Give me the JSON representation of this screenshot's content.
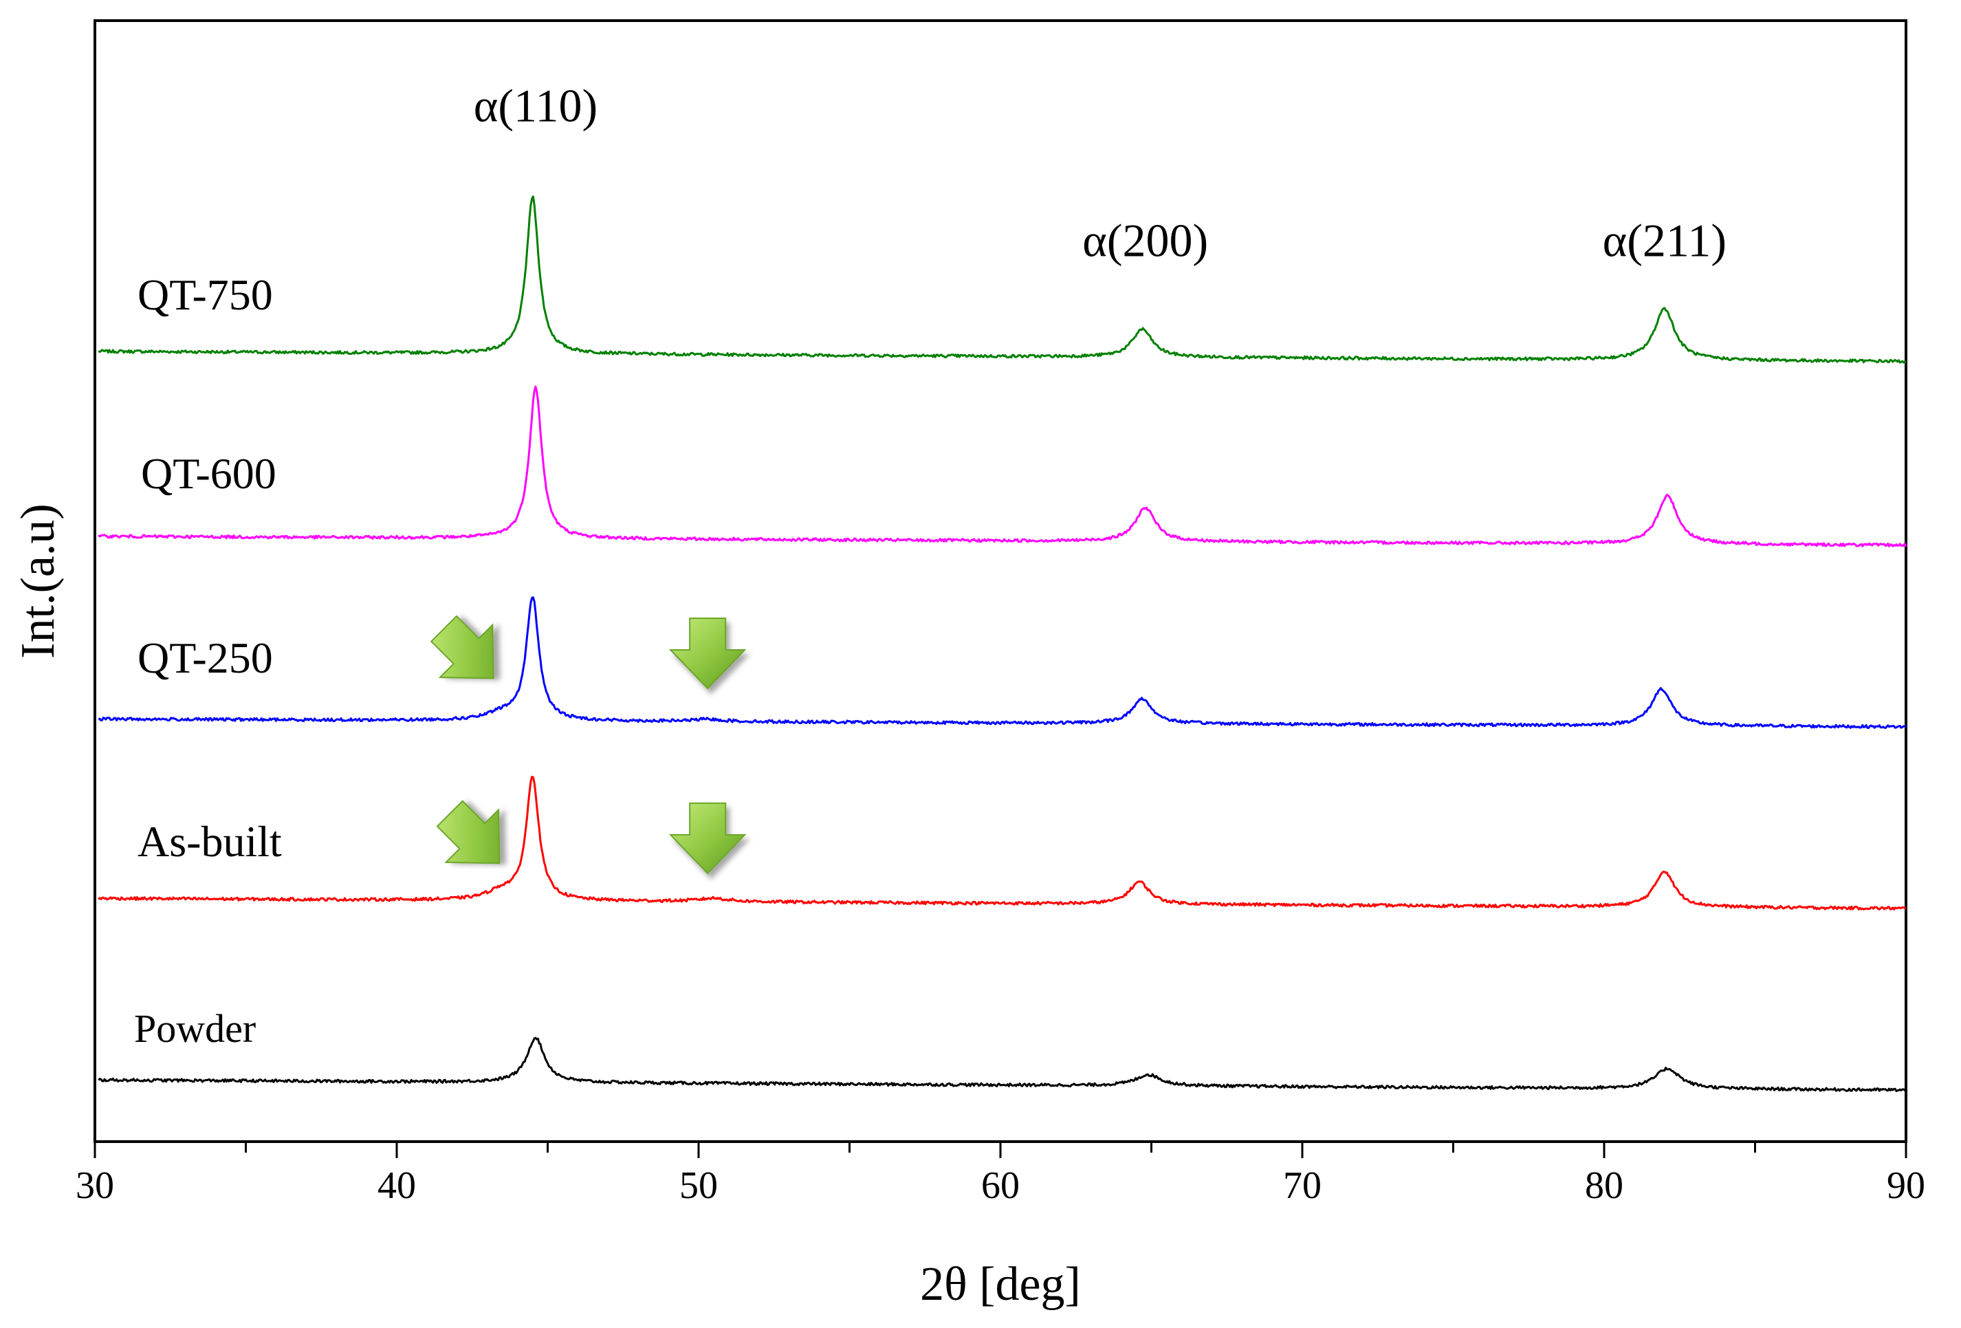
{
  "chart_data": {
    "type": "line",
    "title": "",
    "xlabel": "2θ [deg]",
    "ylabel": "Int.(a.u)",
    "xlim": [
      30,
      90
    ],
    "ylim": [
      0,
      100
    ],
    "x_ticks": [
      30,
      40,
      50,
      60,
      70,
      80,
      90
    ],
    "x_minor_step": 5,
    "y_ticks_shown": false,
    "grid": false,
    "legend": "none (series labelled inline at left)",
    "peak_positions": [
      44.6,
      64.8,
      82.0
    ],
    "series": [
      {
        "name": "QT-750",
        "color": "#008000",
        "baseline_start": 70.5,
        "baseline_end": 69.6,
        "peaks": [
          {
            "x": 44.5,
            "height": 14.0,
            "width": 0.25
          },
          {
            "x": 64.7,
            "height": 2.5,
            "width": 0.4
          },
          {
            "x": 82.0,
            "height": 4.6,
            "width": 0.4
          }
        ]
      },
      {
        "name": "QT-600",
        "color": "#ff00ff",
        "baseline_start": 54.0,
        "baseline_end": 53.2,
        "peaks": [
          {
            "x": 44.6,
            "height": 13.5,
            "width": 0.25
          },
          {
            "x": 64.8,
            "height": 3.0,
            "width": 0.4
          },
          {
            "x": 82.1,
            "height": 4.3,
            "width": 0.4
          }
        ]
      },
      {
        "name": "QT-250",
        "color": "#0000ff",
        "baseline_start": 37.7,
        "baseline_end": 37.0,
        "peaks": [
          {
            "x": 44.5,
            "height": 11.0,
            "width": 0.25
          },
          {
            "x": 64.7,
            "height": 2.2,
            "width": 0.4
          },
          {
            "x": 81.9,
            "height": 3.3,
            "width": 0.4
          },
          {
            "x": 43.5,
            "height": 0.6,
            "width": 0.6
          },
          {
            "x": 50.3,
            "height": 0.2,
            "width": 0.6
          }
        ]
      },
      {
        "name": "As-built",
        "color": "#ff0000",
        "baseline_start": 21.7,
        "baseline_end": 20.8,
        "peaks": [
          {
            "x": 44.5,
            "height": 11.0,
            "width": 0.25
          },
          {
            "x": 64.6,
            "height": 2.0,
            "width": 0.4
          },
          {
            "x": 82.0,
            "height": 3.2,
            "width": 0.4
          },
          {
            "x": 43.5,
            "height": 0.8,
            "width": 0.6
          },
          {
            "x": 50.5,
            "height": 0.3,
            "width": 0.6
          }
        ]
      },
      {
        "name": "Powder",
        "color": "#000000",
        "baseline_start": 5.5,
        "baseline_end": 4.6,
        "peaks": [
          {
            "x": 44.6,
            "height": 4.0,
            "width": 0.35
          },
          {
            "x": 64.9,
            "height": 1.0,
            "width": 0.5
          },
          {
            "x": 82.1,
            "height": 1.8,
            "width": 0.5
          }
        ]
      }
    ],
    "peak_labels": [
      {
        "text": "α(110)",
        "x": 44.6,
        "y": 91
      },
      {
        "text": "α(200)",
        "x": 64.8,
        "y": 79
      },
      {
        "text": "α(211)",
        "x": 82.0,
        "y": 79
      }
    ],
    "arrows": [
      {
        "series": "QT-250",
        "x": 42.4,
        "y": 43.5,
        "direction": "down-right"
      },
      {
        "series": "QT-250",
        "x": 50.3,
        "y": 43.5,
        "direction": "down"
      },
      {
        "series": "As-built",
        "x": 42.6,
        "y": 27.0,
        "direction": "down-right"
      },
      {
        "series": "As-built",
        "x": 50.3,
        "y": 27.0,
        "direction": "down"
      }
    ],
    "arrow_color": "#8dc63f"
  }
}
